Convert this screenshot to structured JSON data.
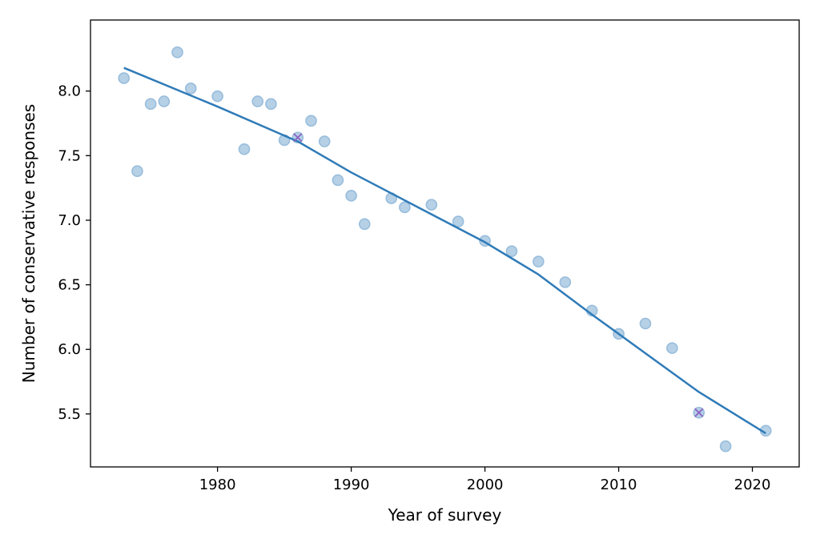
{
  "chart_data": {
    "type": "scatter",
    "title": "",
    "xlabel": "Year of survey",
    "ylabel": "Number of conservative responses",
    "xlim": [
      1970.5,
      2023.5
    ],
    "ylim": [
      5.09,
      8.55
    ],
    "x_ticks": [
      1980,
      1990,
      2000,
      2010,
      2020
    ],
    "y_ticks": [
      5.5,
      6.0,
      6.5,
      7.0,
      7.5,
      8.0
    ],
    "x_tick_labels": [
      "1980",
      "1990",
      "2000",
      "2010",
      "2020"
    ],
    "y_tick_labels": [
      "5.5",
      "6.0",
      "6.5",
      "7.0",
      "7.5",
      "8.0"
    ],
    "grid": false,
    "legend": "none",
    "colors": {
      "points_fill": "#b6d0e6",
      "points_edge": "#98bddc",
      "trend_line": "#2f7bb8",
      "marker_x": "#8b63c6"
    },
    "series": [
      {
        "kind": "scatter",
        "points": [
          [
            1973,
            8.1
          ],
          [
            1974,
            7.38
          ],
          [
            1975,
            7.9
          ],
          [
            1976,
            7.92
          ],
          [
            1977,
            8.3
          ],
          [
            1978,
            8.02
          ],
          [
            1980,
            7.96
          ],
          [
            1982,
            7.55
          ],
          [
            1983,
            7.92
          ],
          [
            1984,
            7.9
          ],
          [
            1985,
            7.62
          ],
          [
            1986,
            7.64
          ],
          [
            1987,
            7.77
          ],
          [
            1988,
            7.61
          ],
          [
            1989,
            7.31
          ],
          [
            1990,
            7.19
          ],
          [
            1991,
            6.97
          ],
          [
            1993,
            7.17
          ],
          [
            1994,
            7.1
          ],
          [
            1996,
            7.12
          ],
          [
            1998,
            6.99
          ],
          [
            2000,
            6.84
          ],
          [
            2002,
            6.76
          ],
          [
            2004,
            6.68
          ],
          [
            2006,
            6.52
          ],
          [
            2008,
            6.3
          ],
          [
            2010,
            6.12
          ],
          [
            2012,
            6.2
          ],
          [
            2014,
            6.01
          ],
          [
            2016,
            5.51
          ],
          [
            2018,
            5.25
          ],
          [
            2021,
            5.37
          ]
        ]
      },
      {
        "kind": "line",
        "points": [
          [
            1973,
            8.18
          ],
          [
            1980,
            7.88
          ],
          [
            1986,
            7.61
          ],
          [
            1990,
            7.37
          ],
          [
            1995,
            7.1
          ],
          [
            2000,
            6.83
          ],
          [
            2004,
            6.58
          ],
          [
            2008,
            6.27
          ],
          [
            2012,
            5.97
          ],
          [
            2016,
            5.67
          ],
          [
            2021,
            5.35
          ]
        ]
      },
      {
        "kind": "x-markers",
        "points": [
          [
            1986,
            7.64
          ],
          [
            2016,
            5.51
          ]
        ]
      }
    ]
  }
}
